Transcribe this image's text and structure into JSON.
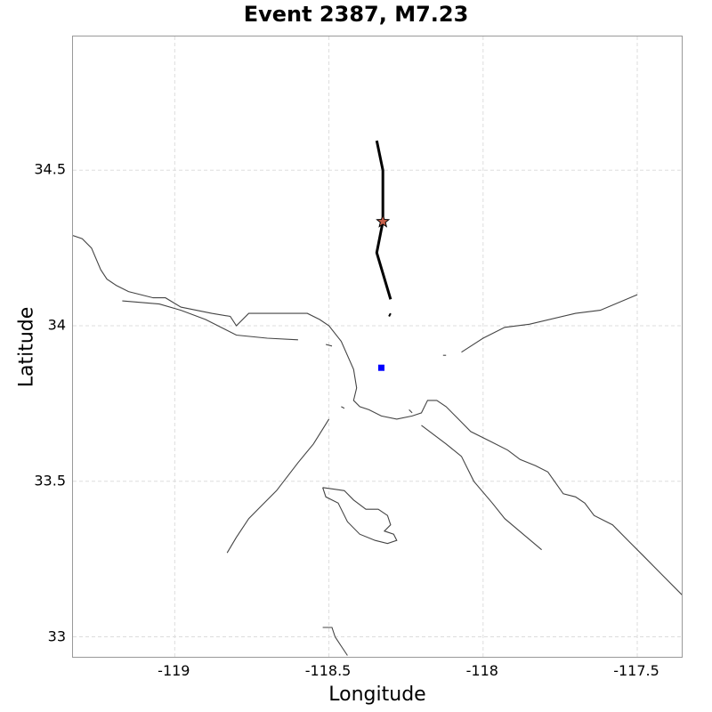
{
  "title": "Event 2387, M7.23",
  "xlabel": "Longitude",
  "ylabel": "Latitude",
  "xlim": [
    -119.33,
    -117.35
  ],
  "ylim": [
    32.93,
    34.93
  ],
  "xticks": [
    {
      "value": -119.0,
      "label": "-119"
    },
    {
      "value": -118.5,
      "label": "-118.5"
    },
    {
      "value": -118.0,
      "label": "-118"
    },
    {
      "value": -117.5,
      "label": "-117.5"
    }
  ],
  "yticks": [
    {
      "value": 33.0,
      "label": "33"
    },
    {
      "value": 33.5,
      "label": "33.5"
    },
    {
      "value": 34.0,
      "label": "34"
    },
    {
      "value": 34.5,
      "label": "34.5"
    }
  ],
  "grid": true,
  "colors": {
    "coastline": "#444444",
    "fault": "#000000",
    "grid": "#dddddd",
    "epicenter_fill": "#c8604a",
    "site": "#0000ff"
  },
  "epicenter": {
    "lon": -118.325,
    "lat": 34.335,
    "icon": "star-icon"
  },
  "site": {
    "lon": -118.33,
    "lat": 33.865,
    "icon": "square-icon"
  },
  "fault_rupture": [
    [
      -118.345,
      34.595
    ],
    [
      -118.325,
      34.5
    ],
    [
      -118.325,
      34.335
    ],
    [
      -118.345,
      34.235
    ],
    [
      -118.3,
      34.085
    ]
  ],
  "fault_fragment": [
    [
      -118.305,
      34.03
    ],
    [
      -118.3,
      34.04
    ]
  ],
  "coastlines": [
    [
      [
        -119.33,
        34.29
      ],
      [
        -119.3,
        34.28
      ],
      [
        -119.27,
        34.25
      ],
      [
        -119.24,
        34.18
      ],
      [
        -119.22,
        34.15
      ],
      [
        -119.19,
        34.13
      ],
      [
        -119.15,
        34.11
      ],
      [
        -119.11,
        34.1
      ],
      [
        -119.07,
        34.09
      ],
      [
        -119.03,
        34.09
      ],
      [
        -118.98,
        34.06
      ],
      [
        -118.93,
        34.05
      ],
      [
        -118.88,
        34.04
      ],
      [
        -118.82,
        34.03
      ],
      [
        -118.8,
        34.0
      ],
      [
        -118.76,
        34.04
      ],
      [
        -118.7,
        34.04
      ],
      [
        -118.64,
        34.04
      ],
      [
        -118.57,
        34.04
      ],
      [
        -118.53,
        34.02
      ],
      [
        -118.5,
        34.0
      ],
      [
        -118.46,
        33.95
      ],
      [
        -118.42,
        33.86
      ],
      [
        -118.41,
        33.8
      ],
      [
        -118.42,
        33.76
      ],
      [
        -118.4,
        33.74
      ],
      [
        -118.37,
        33.73
      ],
      [
        -118.33,
        33.71
      ],
      [
        -118.28,
        33.7
      ],
      [
        -118.23,
        33.71
      ],
      [
        -118.2,
        33.72
      ],
      [
        -118.18,
        33.76
      ],
      [
        -118.15,
        33.76
      ],
      [
        -118.12,
        33.74
      ],
      [
        -118.08,
        33.7
      ],
      [
        -118.04,
        33.66
      ],
      [
        -117.98,
        33.63
      ],
      [
        -117.92,
        33.6
      ],
      [
        -117.88,
        33.57
      ],
      [
        -117.83,
        33.55
      ],
      [
        -117.79,
        33.53
      ],
      [
        -117.74,
        33.46
      ],
      [
        -117.7,
        33.45
      ],
      [
        -117.67,
        33.43
      ],
      [
        -117.64,
        33.39
      ],
      [
        -117.58,
        33.36
      ],
      [
        -117.53,
        33.31
      ],
      [
        -117.48,
        33.26
      ],
      [
        -117.42,
        33.2
      ],
      [
        -117.35,
        33.13
      ]
    ],
    [
      [
        -119.17,
        34.08
      ],
      [
        -119.05,
        34.07
      ],
      [
        -118.98,
        34.05
      ],
      [
        -118.9,
        34.02
      ],
      [
        -118.8,
        33.97
      ],
      [
        -118.7,
        33.96
      ],
      [
        -118.6,
        33.955
      ]
    ],
    [
      [
        -118.51,
        33.94
      ],
      [
        -118.49,
        33.935
      ]
    ],
    [
      [
        -118.83,
        33.27
      ],
      [
        -118.8,
        33.32
      ],
      [
        -118.76,
        33.38
      ],
      [
        -118.72,
        33.42
      ],
      [
        -118.67,
        33.47
      ],
      [
        -118.6,
        33.56
      ],
      [
        -118.55,
        33.62
      ],
      [
        -118.5,
        33.7
      ]
    ],
    [
      [
        -118.52,
        33.48
      ],
      [
        -118.45,
        33.47
      ],
      [
        -118.42,
        33.44
      ],
      [
        -118.38,
        33.41
      ],
      [
        -118.34,
        33.41
      ],
      [
        -118.31,
        33.39
      ],
      [
        -118.3,
        33.36
      ],
      [
        -118.32,
        33.34
      ],
      [
        -118.29,
        33.33
      ],
      [
        -118.28,
        33.31
      ],
      [
        -118.31,
        33.3
      ],
      [
        -118.35,
        33.31
      ],
      [
        -118.4,
        33.33
      ],
      [
        -118.44,
        33.37
      ],
      [
        -118.47,
        33.43
      ],
      [
        -118.51,
        33.45
      ],
      [
        -118.52,
        33.48
      ]
    ],
    [
      [
        -118.52,
        33.03
      ],
      [
        -118.49,
        33.03
      ],
      [
        -118.48,
        33.0
      ],
      [
        -118.46,
        32.97
      ],
      [
        -118.44,
        32.94
      ]
    ],
    [
      [
        -118.46,
        33.74
      ],
      [
        -118.45,
        33.735
      ]
    ],
    [
      [
        -118.24,
        33.73
      ],
      [
        -118.23,
        33.72
      ]
    ],
    [
      [
        -118.13,
        33.905
      ],
      [
        -118.12,
        33.905
      ]
    ],
    [
      [
        -118.07,
        33.915
      ],
      [
        -118.0,
        33.96
      ],
      [
        -117.93,
        33.995
      ],
      [
        -117.85,
        34.005
      ],
      [
        -117.7,
        34.04
      ],
      [
        -117.62,
        34.05
      ],
      [
        -117.5,
        34.1
      ]
    ],
    [
      [
        -118.2,
        33.68
      ],
      [
        -118.12,
        33.62
      ],
      [
        -118.07,
        33.58
      ],
      [
        -118.03,
        33.5
      ],
      [
        -117.97,
        33.43
      ],
      [
        -117.93,
        33.38
      ],
      [
        -117.87,
        33.33
      ],
      [
        -117.81,
        33.28
      ]
    ]
  ]
}
